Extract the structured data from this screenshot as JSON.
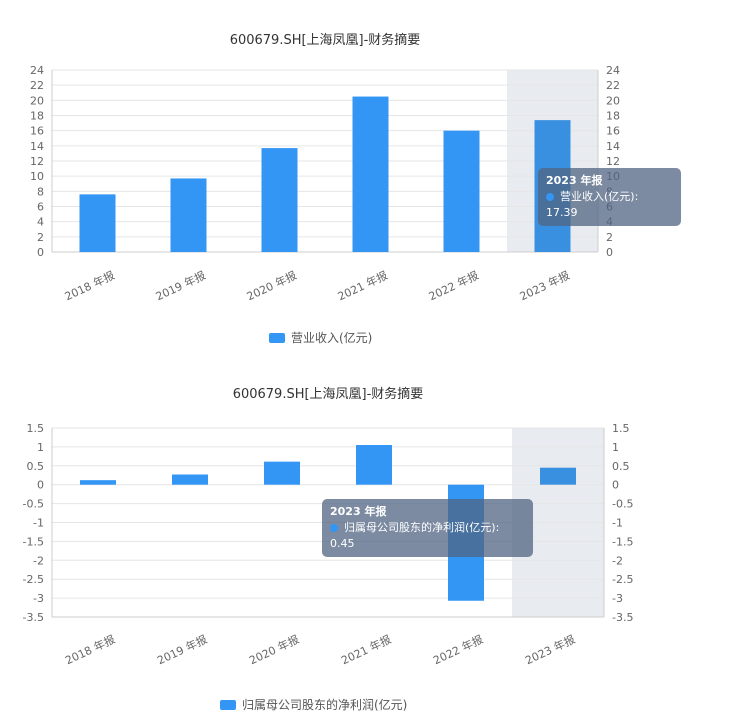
{
  "colors": {
    "bar": "#3396f5",
    "highlight": "#3a90e0",
    "band": "#e8ebf0",
    "axis": "#cccccc",
    "grid": "#e6e6e6",
    "text": "#666666"
  },
  "chart_data": [
    {
      "type": "bar",
      "title": "600679.SH[上海凤凰]-财务摘要",
      "categories": [
        "2018 年报",
        "2019 年报",
        "2020 年报",
        "2021 年报",
        "2022 年报",
        "2023 年报"
      ],
      "series": [
        {
          "name": "营业收入(亿元)",
          "values": [
            7.6,
            9.7,
            13.7,
            20.5,
            16.0,
            17.39
          ]
        }
      ],
      "ylim": [
        0,
        24
      ],
      "yticks": [
        0,
        2,
        4,
        6,
        8,
        10,
        12,
        14,
        16,
        18,
        20,
        22,
        24
      ],
      "ytick_labels": [
        "0",
        "2",
        "4",
        "6",
        "8",
        "10",
        "12",
        "14",
        "16",
        "18",
        "20",
        "22",
        "24"
      ],
      "highlight_index": 5,
      "tooltip": {
        "title": "2023 年报",
        "label": "营业收入(亿元)",
        "value": "17.39"
      },
      "legend_label": "营业收入(亿元)",
      "xlabel": "",
      "ylabel": ""
    },
    {
      "type": "bar",
      "title": "600679.SH[上海凤凰]-财务摘要",
      "categories": [
        "2018 年报",
        "2019 年报",
        "2020 年报",
        "2021 年报",
        "2022 年报",
        "2023 年报"
      ],
      "series": [
        {
          "name": "归属母公司股东的净利润(亿元)",
          "values": [
            0.12,
            0.27,
            0.61,
            1.05,
            -3.07,
            0.45
          ]
        }
      ],
      "ylim": [
        -3.5,
        1.5
      ],
      "yticks": [
        -3.5,
        -3,
        -2.5,
        -2,
        -1.5,
        -1,
        -0.5,
        0,
        0.5,
        1,
        1.5
      ],
      "ytick_labels": [
        "-3.5",
        "-3",
        "-2.5",
        "-2",
        "-1.5",
        "-1",
        "-0.5",
        "0",
        "0.5",
        "1",
        "1.5"
      ],
      "highlight_index": 5,
      "tooltip": {
        "title": "2023 年报",
        "label": "归属母公司股东的净利润(亿元):",
        "value": "0.45"
      },
      "legend_label": "归属母公司股东的净利润(亿元)",
      "xlabel": "",
      "ylabel": ""
    }
  ]
}
